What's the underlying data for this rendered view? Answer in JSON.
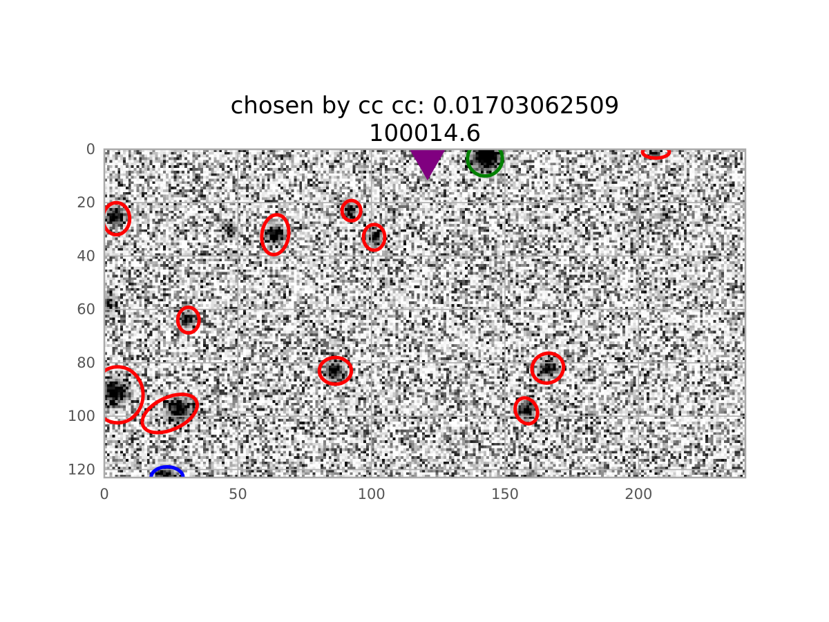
{
  "chart_data": {
    "type": "image",
    "title_lines": [
      "chosen by cc cc: 0.01703062509",
      "100014.6"
    ],
    "xlim": [
      0,
      240
    ],
    "ylim": [
      123,
      0
    ],
    "x_ticks": [
      0,
      50,
      100,
      150,
      200
    ],
    "x_tick_labels": [
      "0",
      "50",
      "100",
      "150",
      "200"
    ],
    "y_ticks": [
      0,
      20,
      40,
      60,
      80,
      100,
      120
    ],
    "y_tick_labels": [
      "0",
      "20",
      "40",
      "60",
      "80",
      "100",
      "120"
    ],
    "grid": true,
    "colormap": "gray_r",
    "sources": [
      {
        "x": 4,
        "y": 25,
        "strength": 1.0,
        "sigma": 2.2
      },
      {
        "x": 47,
        "y": 30,
        "strength": 0.8,
        "sigma": 1.6
      },
      {
        "x": 64,
        "y": 32,
        "strength": 1.0,
        "sigma": 2.2
      },
      {
        "x": 92,
        "y": 23,
        "strength": 0.9,
        "sigma": 1.6
      },
      {
        "x": 101,
        "y": 33,
        "strength": 0.9,
        "sigma": 1.8
      },
      {
        "x": 143,
        "y": 3,
        "strength": 1.4,
        "sigma": 3.2
      },
      {
        "x": 206,
        "y": 1,
        "strength": 0.6,
        "sigma": 1.6
      },
      {
        "x": 31,
        "y": 64,
        "strength": 0.9,
        "sigma": 1.8
      },
      {
        "x": 4,
        "y": 91,
        "strength": 1.0,
        "sigma": 3.0
      },
      {
        "x": 28,
        "y": 98,
        "strength": 1.0,
        "sigma": 3.0
      },
      {
        "x": 86,
        "y": 83,
        "strength": 1.0,
        "sigma": 2.2
      },
      {
        "x": 166,
        "y": 82,
        "strength": 0.8,
        "sigma": 2.2
      },
      {
        "x": 158,
        "y": 98,
        "strength": 0.9,
        "sigma": 2.0
      },
      {
        "x": 23,
        "y": 122,
        "strength": 1.0,
        "sigma": 2.2
      },
      {
        "x": 1,
        "y": 58,
        "strength": 0.5,
        "sigma": 2.5
      },
      {
        "x": 210,
        "y": 25,
        "strength": 0.4,
        "sigma": 1.5
      },
      {
        "x": 105,
        "y": 50,
        "strength": 0.4,
        "sigma": 1.2
      },
      {
        "x": 160,
        "y": 122,
        "strength": 0.5,
        "sigma": 1.5
      }
    ],
    "ellipses": [
      {
        "cx": 4.5,
        "cy": 26,
        "rx": 5,
        "ry": 6,
        "angle": 0,
        "color": "#ff0000"
      },
      {
        "cx": 64,
        "cy": 32,
        "rx": 5,
        "ry": 7.5,
        "angle": 8,
        "color": "#ff0000"
      },
      {
        "cx": 92.5,
        "cy": 23,
        "rx": 3.5,
        "ry": 3.8,
        "angle": 0,
        "color": "#ff0000"
      },
      {
        "cx": 101,
        "cy": 33,
        "rx": 4,
        "ry": 4.8,
        "angle": 0,
        "color": "#ff0000"
      },
      {
        "cx": 206.5,
        "cy": 1,
        "rx": 5,
        "ry": 2.3,
        "angle": 0,
        "color": "#ff0000"
      },
      {
        "cx": 31.5,
        "cy": 64,
        "rx": 4,
        "ry": 4.8,
        "angle": 0,
        "color": "#ff0000"
      },
      {
        "cx": 5,
        "cy": 92,
        "rx": 9.5,
        "ry": 10.5,
        "angle": 0,
        "color": "#ff0000"
      },
      {
        "cx": 24.5,
        "cy": 99,
        "rx": 11,
        "ry": 6,
        "angle": -25,
        "color": "#ff0000"
      },
      {
        "cx": 86.5,
        "cy": 83,
        "rx": 6,
        "ry": 5,
        "angle": 0,
        "color": "#ff0000"
      },
      {
        "cx": 166,
        "cy": 82,
        "rx": 6,
        "ry": 5.5,
        "angle": -25,
        "color": "#ff0000"
      },
      {
        "cx": 158,
        "cy": 98,
        "rx": 4,
        "ry": 5,
        "angle": -25,
        "color": "#ff0000"
      },
      {
        "cx": 23.5,
        "cy": 123,
        "rx": 6,
        "ry": 4,
        "angle": 0,
        "color": "#0000ff"
      },
      {
        "cx": 142.5,
        "cy": 3.5,
        "rx": 6.5,
        "ry": 6.5,
        "angle": 0,
        "color": "#008000"
      }
    ],
    "marker": {
      "x": 121,
      "y": 2,
      "shape": "triangle-down",
      "color": "#800080"
    }
  }
}
